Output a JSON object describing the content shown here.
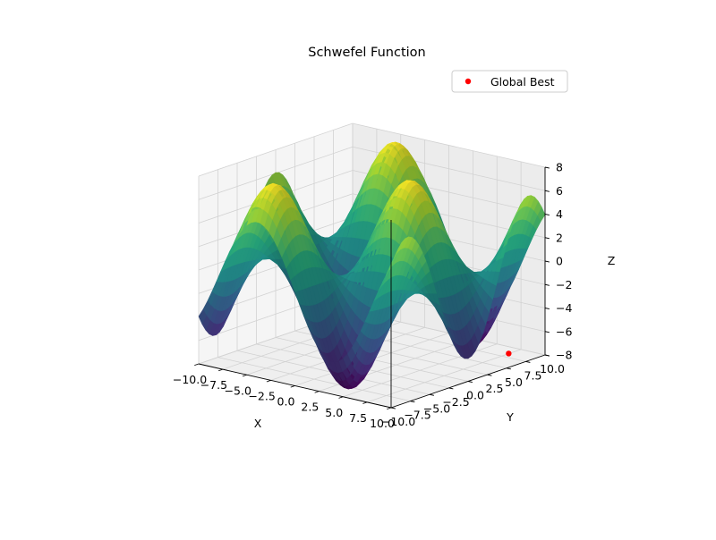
{
  "chart_data": {
    "type": "surface3d",
    "title": "Schwefel Function",
    "xlabel": "X",
    "ylabel": "Y",
    "zlabel": "Z",
    "xlim": [
      -10,
      10
    ],
    "ylim": [
      -10,
      10
    ],
    "zlim": [
      -8,
      8
    ],
    "x_ticks": [
      "−10.0",
      "−7.5",
      "−5.0",
      "−2.5",
      "0.0",
      "2.5",
      "5.0",
      "7.5",
      "10.0"
    ],
    "y_ticks": [
      "−10.0",
      "−7.5",
      "−5.0",
      "−2.5",
      "0.0",
      "2.5",
      "5.0",
      "7.5",
      "10.0"
    ],
    "z_ticks": [
      "−8",
      "−6",
      "−4",
      "−2",
      "0",
      "2",
      "4",
      "6",
      "8"
    ],
    "x_tick_values": [
      -10,
      -7.5,
      -5,
      -2.5,
      0,
      2.5,
      5,
      7.5,
      10
    ],
    "y_tick_values": [
      -10,
      -7.5,
      -5,
      -2.5,
      0,
      2.5,
      5,
      7.5,
      10
    ],
    "z_tick_values": [
      -8,
      -6,
      -4,
      -2,
      0,
      2,
      4,
      6,
      8
    ],
    "colormap": "viridis",
    "grid": true,
    "legend": {
      "position": "top-right",
      "entries": [
        {
          "label": "Global Best",
          "color": "#ff0000",
          "marker": "circle"
        }
      ]
    },
    "global_best": {
      "x": 7.9,
      "y": 7.9,
      "z": -7.8
    }
  }
}
